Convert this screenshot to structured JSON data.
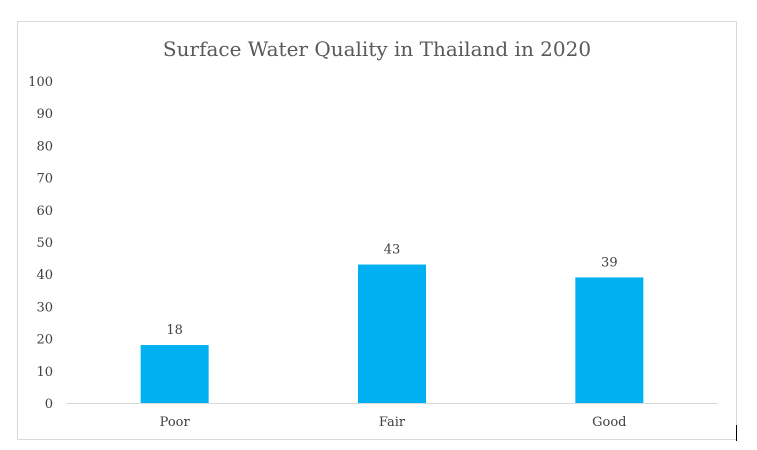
{
  "chart_data": {
    "type": "bar",
    "title": "Surface Water Quality in Thailand in 2020",
    "categories": [
      "Poor",
      "Fair",
      "Good"
    ],
    "values": [
      18,
      43,
      39
    ],
    "xlabel": "",
    "ylabel": "",
    "ylim": [
      0,
      100
    ],
    "yticks": [
      0,
      10,
      20,
      30,
      40,
      50,
      60,
      70,
      80,
      90,
      100
    ],
    "grid": false,
    "legend": "none",
    "bar_color": "#00b0f0",
    "axis_color": "#d9d9d9"
  }
}
